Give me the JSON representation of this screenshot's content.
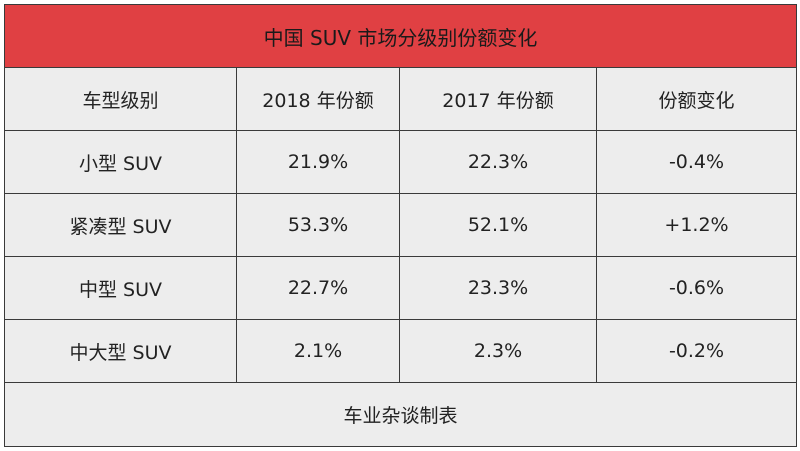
{
  "chart_data": {
    "type": "table",
    "title": "中国 SUV 市场分级别份额变化",
    "columns": [
      "车型级别",
      "2018 年份额",
      "2017 年份额",
      "份额变化"
    ],
    "rows": [
      [
        "小型 SUV",
        "21.9%",
        "22.3%",
        "-0.4%"
      ],
      [
        "紧凑型 SUV",
        "53.3%",
        "52.1%",
        "+1.2%"
      ],
      [
        "中型 SUV",
        "22.7%",
        "23.3%",
        "-0.6%"
      ],
      [
        "中大型 SUV",
        "2.1%",
        "2.3%",
        "-0.2%"
      ]
    ],
    "footer": "车业杂谈制表"
  },
  "colors": {
    "title_background": "#e04043",
    "cell_background": "#ededed",
    "border": "#3a3a3a"
  }
}
